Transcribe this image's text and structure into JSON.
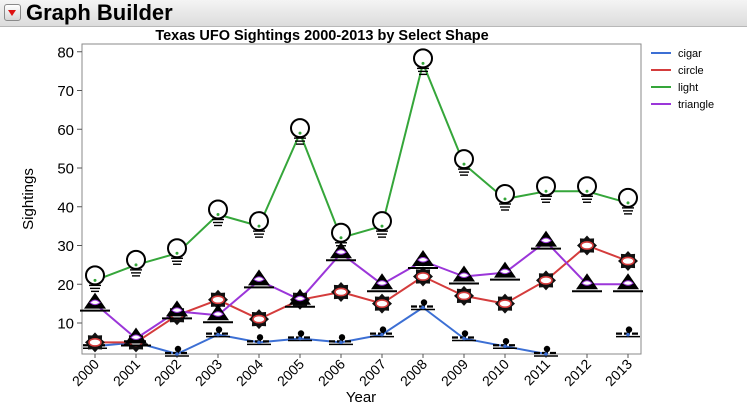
{
  "header": {
    "title": "Graph Builder"
  },
  "chart_data": {
    "type": "line",
    "title": "Texas UFO Sightings 2000-2013 by Select Shape",
    "xlabel": "Year",
    "ylabel": "Sightings",
    "categories": [
      "2000",
      "2001",
      "2002",
      "2003",
      "2004",
      "2005",
      "2006",
      "2007",
      "2008",
      "2009",
      "2010",
      "2011",
      "2012",
      "2013"
    ],
    "yticks": [
      10,
      20,
      30,
      40,
      50,
      60,
      70,
      80
    ],
    "ylim": [
      2,
      82
    ],
    "grid": false,
    "legend_position": "right",
    "series": [
      {
        "name": "cigar",
        "color": "#3c6fd4",
        "marker": "cigar-icon",
        "values": [
          4,
          5,
          2,
          7,
          5,
          6,
          5,
          7,
          14,
          6,
          4,
          2,
          null,
          7
        ]
      },
      {
        "name": "circle",
        "color": "#d43c3c",
        "marker": "circle-icon",
        "values": [
          5,
          5,
          12,
          16,
          11,
          16,
          18,
          15,
          22,
          17,
          15,
          21,
          30,
          26
        ]
      },
      {
        "name": "light",
        "color": "#35a63a",
        "marker": "lightbulb-icon",
        "values": [
          21,
          25,
          28,
          38,
          35,
          59,
          32,
          35,
          77,
          51,
          42,
          44,
          44,
          41
        ]
      },
      {
        "name": "triangle",
        "color": "#9b36d9",
        "marker": "triangle-icon",
        "values": [
          15,
          6,
          13,
          12,
          21,
          16,
          28,
          20,
          26,
          22,
          23,
          31,
          20,
          20
        ]
      }
    ]
  }
}
